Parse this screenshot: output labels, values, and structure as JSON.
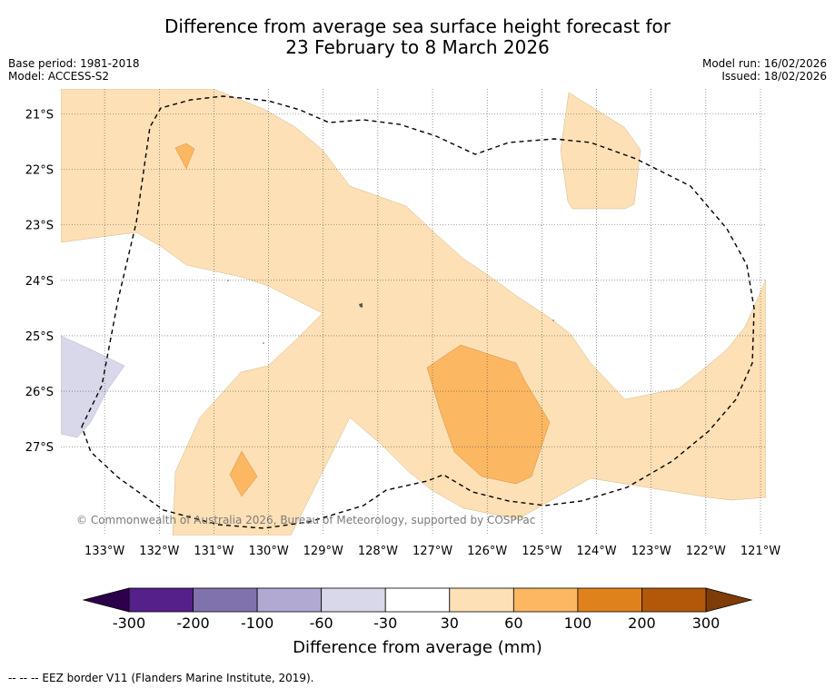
{
  "title": {
    "line1": "Difference from average sea surface height forecast for",
    "line2": "23 February to 8 March 2026"
  },
  "meta": {
    "base_period": "Base period: 1981-2018",
    "model": "Model: ACCESS-S2",
    "model_run": "Model run: 16/02/2026",
    "issued": "Issued: 18/02/2026"
  },
  "map": {
    "lon_range": [
      -133.8,
      -120.9
    ],
    "lat_range": [
      -28.6,
      -20.55
    ],
    "lon_ticks": [
      -133,
      -132,
      -131,
      -130,
      -129,
      -128,
      -127,
      -126,
      -125,
      -124,
      -123,
      -122,
      -121
    ],
    "lon_labels": [
      "133°W",
      "132°W",
      "131°W",
      "130°W",
      "129°W",
      "128°W",
      "127°W",
      "126°W",
      "125°W",
      "124°W",
      "123°W",
      "122°W",
      "121°W"
    ],
    "lat_ticks": [
      -21,
      -22,
      -23,
      -24,
      -25,
      -26,
      -27
    ],
    "lat_labels": [
      "21°S",
      "22°S",
      "23°S",
      "24°S",
      "25°S",
      "26°S",
      "27°S"
    ],
    "copyright": "© Commonwealth of Australia 2026, Bureau of Meteorology, supported by COSPPac"
  },
  "colorbar": {
    "title": "Difference from average (mm)",
    "tick_labels": [
      "-300",
      "-200",
      "-100",
      "-60",
      "-30",
      "30",
      "60",
      "100",
      "200",
      "300"
    ],
    "colors": [
      "#56208a",
      "#8073ad",
      "#b1a9d2",
      "#d8d8ea",
      "#ffffff",
      "#fde0b5",
      "#fbb761",
      "#e0821c",
      "#b35809"
    ],
    "low_extend_color": "#2d004b",
    "high_extend_color": "#7f3b08"
  },
  "footnote": "--  --  -- EEZ border V11 (Flanders Marine Institute, 2019)."
}
